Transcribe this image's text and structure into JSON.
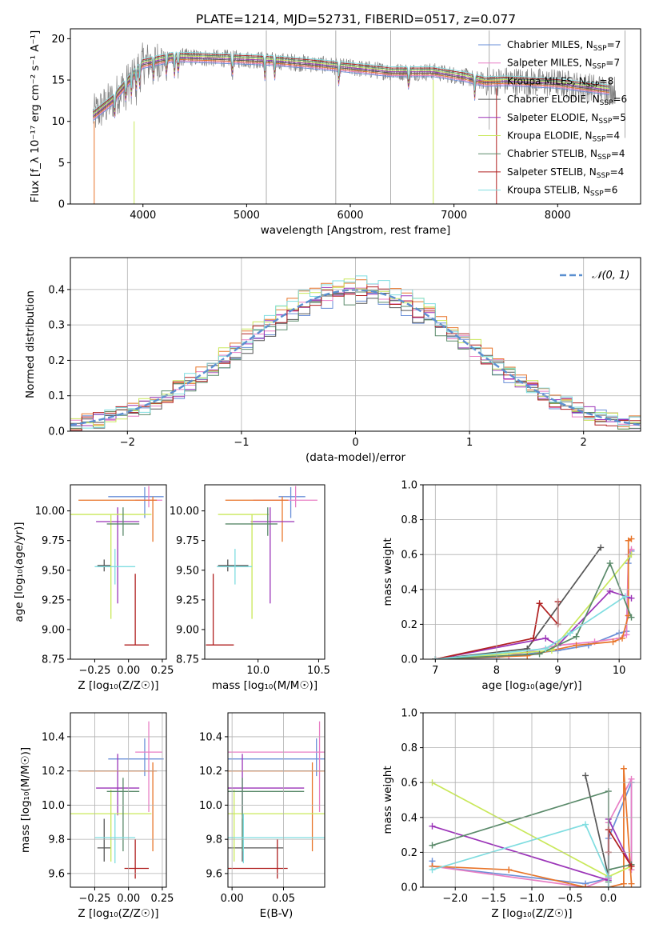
{
  "figure_title": "PLATE=1214, MJD=52731, FIBERID=0517, z=0.077",
  "colors": {
    "Chabrier MILES": "#6a8fd8",
    "Salpeter MILES": "#e87fc5",
    "Kroupa MILES": "#e8752a",
    "Chabrier ELODIE": "#555555",
    "Salpeter ELODIE": "#9b34b8",
    "Kroupa ELODIE": "#c9e85a",
    "Chabrier STELIB": "#5a8a6a",
    "Salpeter STELIB": "#b02020",
    "Kroupa STELIB": "#7fdde0",
    "data": "#808080",
    "normal": "#5b8fd0"
  },
  "chart_data": [
    {
      "id": "spectrum",
      "type": "line",
      "xlabel": "wavelength [Angstrom, rest frame]",
      "ylabel": "Flux [f_λ 10⁻¹⁷ erg cm⁻² s⁻¹ A⁻¹]",
      "xlim": [
        3300,
        8800
      ],
      "ylim": [
        0,
        21.2
      ],
      "xticks": [
        4000,
        5000,
        6000,
        7000,
        8000
      ],
      "yticks": [
        0,
        5,
        10,
        15,
        20
      ],
      "legend_position": "top-right",
      "legend": [
        {
          "name": "Chabrier MILES",
          "nssp": "7"
        },
        {
          "name": "Salpeter MILES",
          "nssp": "7"
        },
        {
          "name": "Kroupa MILES",
          "nssp": "8"
        },
        {
          "name": "Chabrier ELODIE",
          "nssp": "6"
        },
        {
          "name": "Salpeter ELODIE",
          "nssp": "5"
        },
        {
          "name": "Kroupa ELODIE",
          "nssp": "4"
        },
        {
          "name": "Chabrier STELIB",
          "nssp": "4"
        },
        {
          "name": "Salpeter STELIB",
          "nssp": "4"
        },
        {
          "name": "Kroupa STELIB",
          "nssp": "6"
        }
      ],
      "continuum": {
        "x": [
          3500,
          3700,
          3900,
          4000,
          4300,
          4800,
          5200,
          5600,
          6000,
          6400,
          6800,
          7100,
          7300,
          7500,
          8000,
          8500
        ],
        "y": [
          10.5,
          12.5,
          15.5,
          17.0,
          17.8,
          17.6,
          17.4,
          17.0,
          16.5,
          16.0,
          16.0,
          15.4,
          14.8,
          14.9,
          14.6,
          13.8
        ]
      }
    },
    {
      "id": "residuals",
      "type": "line",
      "xlabel": "(data-model)/error",
      "ylabel": "Normed distribution",
      "xlim": [
        -2.5,
        2.5
      ],
      "ylim": [
        0,
        0.49
      ],
      "xticks": [
        -2,
        -1,
        0,
        1,
        2
      ],
      "yticks": [
        0.0,
        0.1,
        0.2,
        0.3,
        0.4
      ],
      "legend": "𝒩(0, 1)",
      "grid": true
    },
    {
      "id": "age_vs_Z",
      "type": "scatter",
      "xlabel": "Z [log₁₀(Z/Z☉)]",
      "ylabel": "age  [log₁₀(age/yr)]",
      "xlim": [
        -0.43,
        0.28
      ],
      "ylim": [
        8.75,
        10.22
      ],
      "xticks": [
        -0.25,
        0.0,
        0.25
      ],
      "yticks": [
        8.75,
        9.0,
        9.25,
        9.5,
        9.75,
        10.0
      ]
    },
    {
      "id": "age_vs_mass",
      "type": "scatter",
      "xlabel": "mass [log₁₀(M/M☉)]",
      "xlim": [
        9.56,
        10.55
      ],
      "ylim": [
        8.75,
        10.22
      ],
      "xticks": [
        10.0,
        10.5
      ],
      "yticks": [
        8.75,
        9.0,
        9.25,
        9.5,
        9.75,
        10.0
      ]
    },
    {
      "id": "weight_vs_age",
      "type": "line",
      "xlabel": "age  [log₁₀(age/yr)]",
      "ylabel": "mass weight",
      "xlim": [
        6.8,
        10.35
      ],
      "ylim": [
        0,
        1.0
      ],
      "xticks": [
        7,
        8,
        9,
        10
      ],
      "yticks": [
        0.0,
        0.2,
        0.4,
        0.6,
        0.8,
        1.0
      ],
      "grid": true
    },
    {
      "id": "mass_vs_Z",
      "type": "scatter",
      "xlabel": "Z [log₁₀(Z/Z☉)]",
      "ylabel": "mass [log₁₀(M/M☉)]",
      "xlim": [
        -0.43,
        0.28
      ],
      "ylim": [
        9.52,
        10.54
      ],
      "xticks": [
        -0.25,
        0.0,
        0.25
      ],
      "yticks": [
        9.6,
        9.8,
        10.0,
        10.2,
        10.4
      ],
      "grid": true
    },
    {
      "id": "mass_vs_ebv",
      "type": "scatter",
      "xlabel": "E(B-V)",
      "xlim": [
        -0.004,
        0.09
      ],
      "ylim": [
        9.52,
        10.54
      ],
      "xticks": [
        0.0,
        0.05
      ],
      "yticks": [
        9.6,
        9.8,
        10.0,
        10.2,
        10.4
      ],
      "grid": true
    },
    {
      "id": "weight_vs_Z",
      "type": "line",
      "xlabel": "Z [log₁₀(Z/Z☉)]",
      "ylabel": "mass weight",
      "xlim": [
        -2.42,
        0.42
      ],
      "ylim": [
        0,
        1.0
      ],
      "xticks": [
        -2.0,
        -1.5,
        -1.0,
        -0.5,
        0.0
      ],
      "yticks": [
        0.0,
        0.2,
        0.4,
        0.6,
        0.8,
        1.0
      ],
      "grid": true
    }
  ],
  "models": [
    {
      "name": "Chabrier MILES",
      "Z": 0.12,
      "Zlo": 0.27,
      "Zhi": 0.14,
      "age": 10.12,
      "alo": 0.18,
      "ahi": 0.08,
      "mass": 10.27,
      "mlo": 0.1,
      "mhi": 0.12,
      "ebv": 0.082,
      "elo": 0.1,
      "ehi": 0.1,
      "w_age": [
        [
          7.0,
          0.0
        ],
        [
          8.0,
          0.01
        ],
        [
          9.0,
          0.05
        ],
        [
          9.5,
          0.08
        ],
        [
          10.0,
          0.15
        ],
        [
          10.12,
          0.16
        ],
        [
          10.15,
          0.55
        ],
        [
          10.2,
          0.62
        ]
      ],
      "w_Z": [
        [
          -2.3,
          0.15
        ],
        [
          -2.3,
          0.12
        ],
        [
          -0.3,
          0.02
        ],
        [
          0.0,
          0.05
        ],
        [
          0.0,
          0.28
        ],
        [
          0.3,
          0.6
        ],
        [
          0.3,
          0.13
        ]
      ]
    },
    {
      "name": "Salpeter MILES",
      "Z": 0.15,
      "Zlo": 0.1,
      "Zhi": 0.1,
      "age": 10.09,
      "alo": 0.06,
      "ahi": 0.12,
      "mass": 10.31,
      "mlo": 0.35,
      "mhi": 0.18,
      "ebv": 0.085,
      "elo": 0.15,
      "ehi": 0.13,
      "w_age": [
        [
          7.0,
          0.0
        ],
        [
          8.2,
          0.02
        ],
        [
          9.0,
          0.08
        ],
        [
          9.6,
          0.1
        ],
        [
          10.0,
          0.12
        ],
        [
          10.12,
          0.14
        ],
        [
          10.15,
          0.6
        ],
        [
          10.2,
          0.63
        ]
      ],
      "w_Z": [
        [
          -2.3,
          0.12
        ],
        [
          -0.3,
          0.0
        ],
        [
          0.0,
          0.05
        ],
        [
          0.0,
          0.37
        ],
        [
          0.3,
          0.62
        ],
        [
          0.3,
          0.1
        ]
      ]
    },
    {
      "name": "Kroupa MILES",
      "Z": 0.18,
      "Zlo": 0.55,
      "Zhi": 0.03,
      "age": 10.09,
      "alo": 0.35,
      "ahi": 0.03,
      "mass": 10.2,
      "mlo": 0.47,
      "mhi": 0.05,
      "ebv": 0.078,
      "elo": 0.32,
      "ehi": 0.07,
      "w_age": [
        [
          7.0,
          0.0
        ],
        [
          8.5,
          0.02
        ],
        [
          9.3,
          0.08
        ],
        [
          9.9,
          0.1
        ],
        [
          10.05,
          0.12
        ],
        [
          10.15,
          0.25
        ],
        [
          10.15,
          0.68
        ],
        [
          10.2,
          0.69
        ]
      ],
      "w_Z": [
        [
          -2.3,
          0.12
        ],
        [
          -1.3,
          0.1
        ],
        [
          -0.3,
          0.0
        ],
        [
          0.0,
          0.0
        ],
        [
          0.2,
          0.02
        ],
        [
          0.2,
          0.68
        ],
        [
          0.3,
          0.02
        ]
      ]
    },
    {
      "name": "Chabrier ELODIE",
      "Z": -0.18,
      "Zlo": 0.05,
      "Zhi": 0.05,
      "age": 9.54,
      "alo": 0.05,
      "ahi": 0.05,
      "mass": 9.75,
      "mlo": 0.08,
      "mhi": 0.17,
      "ebv": 0.01,
      "elo": 0.08,
      "ehi": 0.04,
      "w_age": [
        [
          7.0,
          0.0
        ],
        [
          8.5,
          0.06
        ],
        [
          9.7,
          0.64
        ]
      ],
      "w_Z": [
        [
          -0.3,
          0.64
        ],
        [
          0.0,
          0.06
        ],
        [
          0.0,
          0.0
        ]
      ]
    },
    {
      "name": "Salpeter ELODIE",
      "Z": -0.08,
      "Zlo": 0.16,
      "Zhi": 0.16,
      "age": 9.91,
      "alo": 0.69,
      "ahi": 0.12,
      "mass": 10.1,
      "mlo": 0.16,
      "mhi": 0.2,
      "ebv": 0.01,
      "elo": 0.03,
      "ehi": 0.06,
      "w_age": [
        [
          7.0,
          0.0
        ],
        [
          8.8,
          0.12
        ],
        [
          9.0,
          0.08
        ],
        [
          9.85,
          0.39
        ],
        [
          10.2,
          0.35
        ]
      ],
      "w_Z": [
        [
          -2.3,
          0.35
        ],
        [
          0.0,
          0.04
        ],
        [
          0.0,
          0.39
        ],
        [
          0.3,
          0.12
        ]
      ]
    },
    {
      "name": "Kroupa ELODIE",
      "Z": -0.13,
      "Zlo": 0.3,
      "Zhi": 0.3,
      "age": 9.97,
      "alo": 0.88,
      "ahi": 0.0,
      "mass": 9.95,
      "mlo": 0.28,
      "mhi": 0.14,
      "ebv": 0.002,
      "elo": 0.29,
      "ehi": 0.12,
      "w_age": [
        [
          7.0,
          0.0
        ],
        [
          8.9,
          0.05
        ],
        [
          10.2,
          0.6
        ]
      ],
      "w_Z": [
        [
          -2.3,
          0.6
        ],
        [
          0.0,
          0.06
        ],
        [
          0.3,
          0.12
        ]
      ]
    },
    {
      "name": "Chabrier STELIB",
      "Z": -0.04,
      "Zlo": 0.12,
      "Zhi": 0.12,
      "age": 9.89,
      "alo": 0.1,
      "ahi": 0.14,
      "mass": 10.08,
      "mlo": 0.35,
      "mhi": 0.08,
      "ebv": 0.01,
      "elo": 0.06,
      "ehi": 0.06,
      "w_age": [
        [
          7.0,
          0.0
        ],
        [
          8.7,
          0.03
        ],
        [
          9.3,
          0.13
        ],
        [
          9.85,
          0.55
        ],
        [
          10.2,
          0.24
        ]
      ],
      "w_Z": [
        [
          -2.3,
          0.24
        ],
        [
          0.0,
          0.55
        ],
        [
          0.0,
          0.03
        ],
        [
          0.0,
          0.1
        ],
        [
          0.3,
          0.13
        ]
      ]
    },
    {
      "name": "Salpeter STELIB",
      "Z": 0.05,
      "Zlo": 0.08,
      "Zhi": 0.1,
      "age": 8.87,
      "alo": 0.0,
      "ahi": 0.6,
      "mass": 9.63,
      "mlo": 0.06,
      "mhi": 0.17,
      "ebv": 0.044,
      "elo": 0.06,
      "ehi": 0.01,
      "w_age": [
        [
          7.0,
          0.0
        ],
        [
          8.6,
          0.12
        ],
        [
          8.7,
          0.32
        ],
        [
          9.0,
          0.2
        ],
        [
          9.0,
          0.33
        ]
      ],
      "w_Z": [
        [
          0.0,
          0.2
        ],
        [
          0.0,
          0.33
        ],
        [
          0.3,
          0.12
        ]
      ]
    },
    {
      "name": "Kroupa STELIB",
      "Z": -0.1,
      "Zlo": 0.15,
      "Zhi": 0.15,
      "age": 9.53,
      "alo": 0.15,
      "ahi": 0.15,
      "mass": 9.81,
      "mlo": 0.15,
      "mhi": 0.14,
      "ebv": 0.011,
      "elo": 0.06,
      "ehi": 0.08,
      "w_age": [
        [
          7.0,
          0.0
        ],
        [
          8.8,
          0.06
        ],
        [
          9.2,
          0.15
        ],
        [
          10.1,
          0.36
        ]
      ],
      "w_Z": [
        [
          -2.3,
          0.1
        ],
        [
          -0.3,
          0.36
        ],
        [
          0.0,
          0.06
        ],
        [
          0.0,
          0.0
        ]
      ]
    }
  ]
}
